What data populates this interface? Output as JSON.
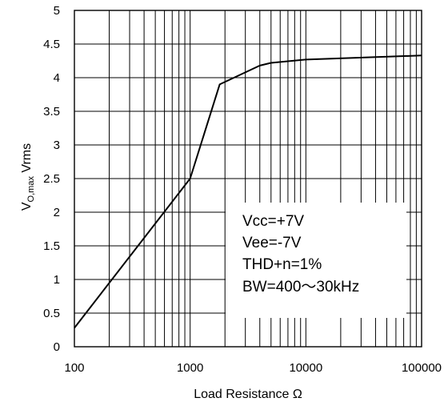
{
  "chart_data": {
    "type": "line",
    "title": "",
    "xlabel": "Load Resistance Ω",
    "ylabel": {
      "main": "V",
      "sub": "O,max",
      "unit": " Vrms"
    },
    "xscale": "log",
    "xlim": [
      100,
      100000
    ],
    "ylim": [
      0,
      5
    ],
    "grid": true,
    "x_ticks": [
      100,
      1000,
      10000,
      100000
    ],
    "x_tick_labels": [
      "100",
      "1000",
      "10000",
      "100000"
    ],
    "y_ticks": [
      0,
      0.5,
      1,
      1.5,
      2,
      2.5,
      3,
      3.5,
      4,
      4.5,
      5
    ],
    "y_tick_labels": [
      "0",
      "0.5",
      "1",
      "1.5",
      "2",
      "2.5",
      "3",
      "3.5",
      "4",
      "4.5",
      "5"
    ],
    "series": [
      {
        "x": [
          100,
          1000,
          1800,
          4000,
          5000,
          10000,
          100000
        ],
        "y": [
          0.28,
          2.5,
          3.9,
          4.18,
          4.22,
          4.27,
          4.33
        ],
        "color": "#000000"
      }
    ],
    "annotation": {
      "lines": [
        "Vcc=+7V",
        "Vee=-7V",
        "THD+n=1%",
        "BW=400～30kHz"
      ],
      "placement": "lower-right"
    }
  }
}
